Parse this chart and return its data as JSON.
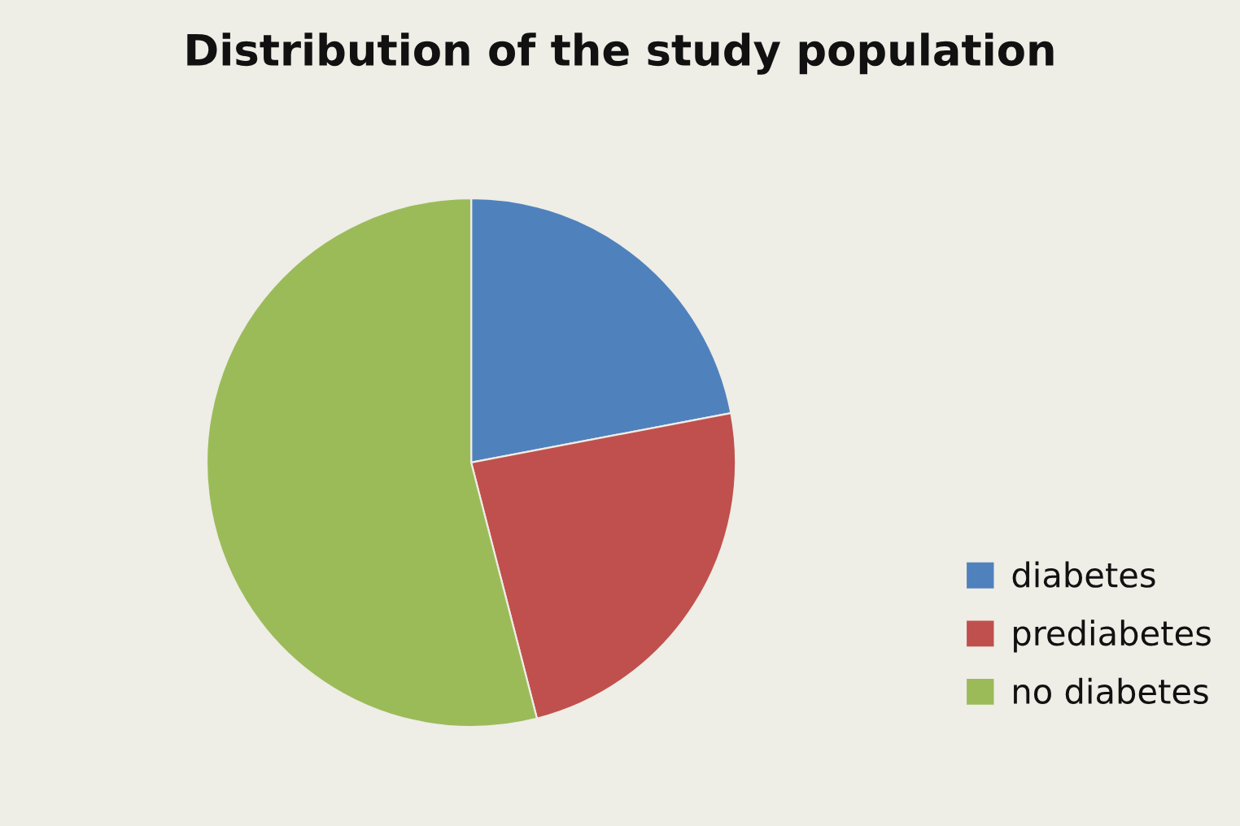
{
  "chart_data": {
    "type": "pie",
    "title": "Distribution of the study population",
    "categories": [
      "diabetes",
      "prediabetes",
      "no diabetes"
    ],
    "values": [
      22,
      24,
      54
    ],
    "colors": [
      "#4f81bd",
      "#c0504d",
      "#9bbb59"
    ],
    "legend": "right"
  }
}
